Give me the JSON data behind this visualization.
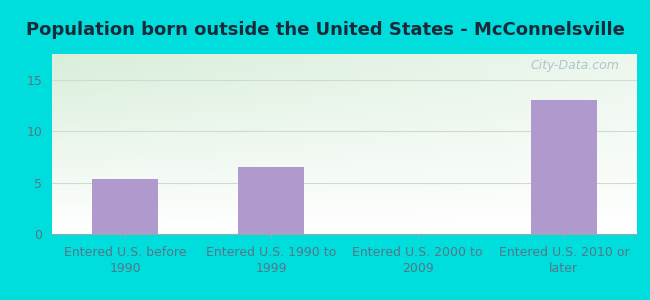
{
  "title": "Population born outside the United States - McConnelsville",
  "categories": [
    "Entered U.S. before\n1990",
    "Entered U.S. 1990 to\n1999",
    "Entered U.S. 2000 to\n2009",
    "Entered U.S. 2010 or\nlater"
  ],
  "values": [
    5.3,
    6.5,
    0,
    13
  ],
  "bar_color": "#b099cc",
  "outer_bg": "#00dddd",
  "plot_bg_top_left": "#d8eeda",
  "plot_bg_bottom_right": "#f8fff8",
  "ylim": [
    0,
    17.5
  ],
  "yticks": [
    0,
    5,
    10,
    15
  ],
  "title_fontsize": 13,
  "title_color": "#1a2a3a",
  "tick_fontsize": 9,
  "tick_color": "#557788",
  "watermark_text": "City-Data.com",
  "watermark_color": "#aabfc8",
  "grid_color": "#ccddcc",
  "bar_width": 0.45
}
